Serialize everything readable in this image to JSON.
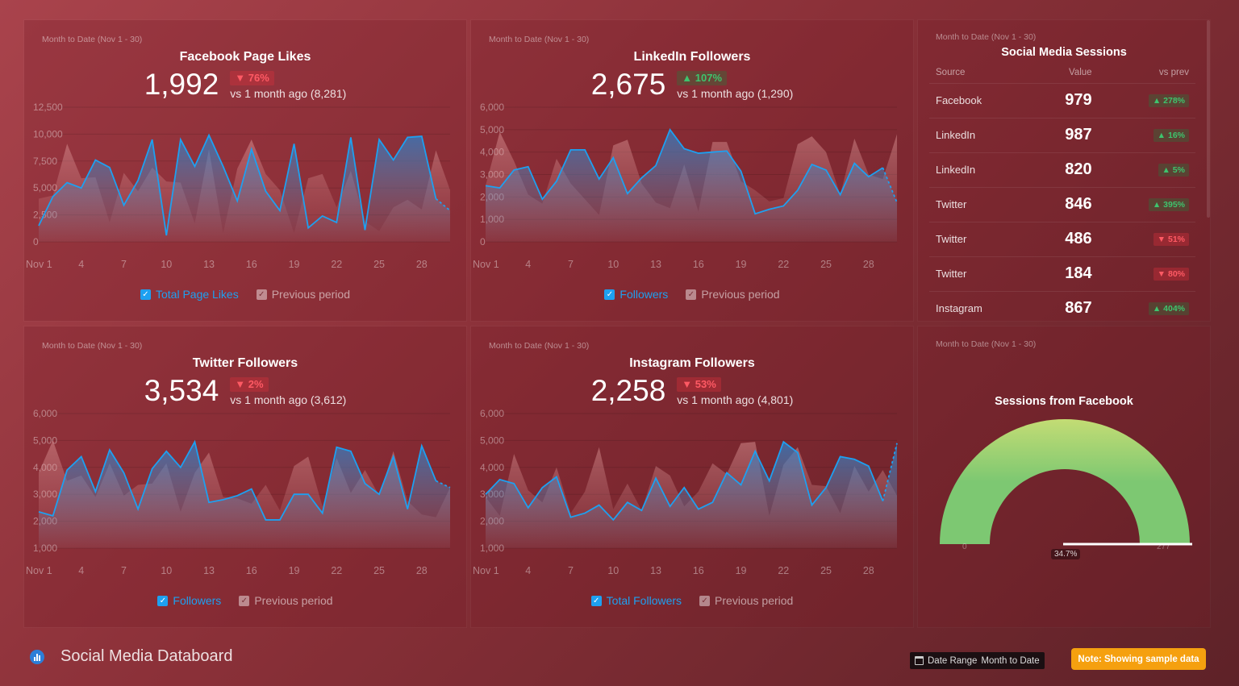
{
  "common": {
    "range": "Month to Date (Nov 1 - 30)",
    "prev_label": "Previous period"
  },
  "facebook": {
    "title": "Facebook Page Likes",
    "value": "1,992",
    "change": "▼ 76%",
    "change_dir": "down",
    "vs": "vs 1 month ago (8,281)",
    "legend": "Total Page Likes"
  },
  "linkedin": {
    "title": "LinkedIn Followers",
    "value": "2,675",
    "change": "▲ 107%",
    "change_dir": "up",
    "vs": "vs 1 month ago (1,290)",
    "legend": "Followers"
  },
  "twitter": {
    "title": "Twitter Followers",
    "value": "3,534",
    "change": "▼ 2%",
    "change_dir": "down",
    "vs": "vs 1 month ago (3,612)",
    "legend": "Followers"
  },
  "instagram": {
    "title": "Instagram Followers",
    "value": "2,258",
    "change": "▼ 53%",
    "change_dir": "down",
    "vs": "vs 1 month ago (4,801)",
    "legend": "Total Followers"
  },
  "sessions": {
    "title": "Social Media Sessions",
    "headers": [
      "Source",
      "Value",
      "vs prev"
    ],
    "rows": [
      {
        "source": "Facebook",
        "value": "979",
        "change": "▲ 278%",
        "dir": "up"
      },
      {
        "source": "LinkedIn",
        "value": "987",
        "change": "▲ 16%",
        "dir": "up"
      },
      {
        "source": "LinkedIn",
        "value": "820",
        "change": "▲ 5%",
        "dir": "up"
      },
      {
        "source": "Twitter",
        "value": "846",
        "change": "▲ 395%",
        "dir": "up"
      },
      {
        "source": "Twitter",
        "value": "486",
        "change": "▼ 51%",
        "dir": "down"
      },
      {
        "source": "Twitter",
        "value": "184",
        "change": "▼ 80%",
        "dir": "down"
      },
      {
        "source": "Instagram",
        "value": "867",
        "change": "▲ 404%",
        "dir": "up"
      }
    ]
  },
  "gauge": {
    "title": "Sessions from Facebook",
    "min": "0",
    "max": "277",
    "value_label": "34.7%",
    "colors": [
      "#c3dc74",
      "#7dc872"
    ]
  },
  "footer": {
    "title": "Social Media Databoard",
    "date_range_label": "Date Range",
    "date_range_value": "Month to Date",
    "note": "Note: Showing sample data"
  },
  "colors": {
    "current": "#1ea0f0",
    "up": "#3ec46d",
    "down": "#ff5a64",
    "note": "#f5a00f"
  },
  "chart_data": [
    {
      "type": "area",
      "id": "facebook",
      "x_ticks": [
        "Nov 1",
        "4",
        "7",
        "10",
        "13",
        "16",
        "19",
        "22",
        "25",
        "28"
      ],
      "ylim": [
        0,
        12500
      ],
      "y_ticks": [
        "0",
        "2,500",
        "5,000",
        "7,500",
        "10,000",
        "12,500"
      ],
      "grid": true,
      "legend": "bottom",
      "series": [
        {
          "name": "Total Page Likes",
          "values": [
            1500,
            4200,
            5500,
            5000,
            7600,
            6900,
            3400,
            5700,
            9500,
            600,
            9500,
            7000,
            9900,
            7000,
            3800,
            8600,
            4700,
            2900,
            9100,
            1300,
            2400,
            1800,
            9700,
            1100,
            9500,
            7600,
            9700,
            9800,
            4000,
            2900
          ]
        },
        {
          "name": "Previous period",
          "values": [
            4000,
            4300,
            9100,
            5900,
            6000,
            1800,
            6400,
            4700,
            6900,
            5600,
            5500,
            1700,
            8600,
            800,
            6800,
            9500,
            6300,
            4800,
            800,
            5900,
            6300,
            3200,
            6600,
            1900,
            1000,
            3200,
            3900,
            3000,
            8500,
            4800
          ]
        }
      ]
    },
    {
      "type": "area",
      "id": "linkedin",
      "x_ticks": [
        "Nov 1",
        "4",
        "7",
        "10",
        "13",
        "16",
        "19",
        "22",
        "25",
        "28"
      ],
      "ylim": [
        0,
        6000
      ],
      "y_ticks": [
        "0",
        "1,000",
        "2,000",
        "3,000",
        "4,000",
        "5,000",
        "6,000"
      ],
      "grid": true,
      "legend": "bottom",
      "series": [
        {
          "name": "Followers",
          "values": [
            2500,
            2400,
            3200,
            3350,
            1900,
            2700,
            4100,
            4100,
            2800,
            3750,
            2150,
            2850,
            3400,
            5000,
            4150,
            3950,
            4000,
            4050,
            3150,
            1250,
            1450,
            1600,
            2300,
            3450,
            3200,
            2100,
            3500,
            2900,
            3300,
            1750
          ]
        },
        {
          "name": "Previous period",
          "values": [
            2500,
            4900,
            3600,
            2100,
            1700,
            3700,
            2600,
            1900,
            1200,
            4300,
            4550,
            2600,
            1750,
            1500,
            3450,
            1350,
            4450,
            4450,
            2700,
            2300,
            1800,
            1950,
            4350,
            4700,
            4000,
            2100,
            4600,
            3000,
            2800,
            4800
          ]
        }
      ]
    },
    {
      "type": "area",
      "id": "twitter",
      "x_ticks": [
        "Nov 1",
        "4",
        "7",
        "10",
        "13",
        "16",
        "19",
        "22",
        "25",
        "28"
      ],
      "ylim": [
        1000,
        6000
      ],
      "y_ticks": [
        "1,000",
        "2,000",
        "3,000",
        "4,000",
        "5,000",
        "6,000"
      ],
      "grid": true,
      "legend": "bottom",
      "series": [
        {
          "name": "Followers",
          "values": [
            2350,
            2200,
            3900,
            4400,
            3100,
            4650,
            3800,
            2450,
            3950,
            4600,
            4000,
            4950,
            2700,
            2800,
            2950,
            3200,
            2050,
            2050,
            3000,
            3000,
            2300,
            4750,
            4600,
            3400,
            3000,
            4400,
            2450,
            4800,
            3500,
            3250
          ]
        },
        {
          "name": "Previous period",
          "values": [
            3800,
            5000,
            3500,
            3700,
            2900,
            4150,
            2950,
            3350,
            3400,
            4150,
            2350,
            3800,
            4550,
            2900,
            2850,
            2650,
            3350,
            2400,
            4050,
            4400,
            2550,
            4350,
            3050,
            3900,
            2950,
            4600,
            2750,
            2250,
            2150,
            3250
          ]
        }
      ]
    },
    {
      "type": "area",
      "id": "instagram",
      "x_ticks": [
        "Nov 1",
        "4",
        "7",
        "10",
        "13",
        "16",
        "19",
        "22",
        "25",
        "28"
      ],
      "ylim": [
        1000,
        6000
      ],
      "y_ticks": [
        "1,000",
        "2,000",
        "3,000",
        "4,000",
        "5,000",
        "6,000"
      ],
      "grid": true,
      "legend": "bottom",
      "series": [
        {
          "name": "Total Followers",
          "values": [
            3000,
            3550,
            3400,
            2500,
            3250,
            3650,
            2150,
            2300,
            2600,
            2050,
            2700,
            2400,
            3600,
            2550,
            3250,
            2450,
            2700,
            3800,
            3350,
            4600,
            3500,
            4950,
            4550,
            2600,
            3250,
            4400,
            4300,
            4050,
            2750,
            4900
          ]
        },
        {
          "name": "Previous period",
          "values": [
            2900,
            2200,
            4500,
            3150,
            2700,
            4000,
            2300,
            3100,
            4750,
            2450,
            3400,
            2400,
            4050,
            3700,
            2550,
            3100,
            4150,
            3750,
            4900,
            4950,
            2200,
            4100,
            4750,
            3350,
            3300,
            2300,
            4050,
            3100,
            3900,
            2950
          ]
        }
      ]
    },
    {
      "type": "gauge",
      "id": "gauge",
      "min": 0,
      "max": 277,
      "value_label": "34.7%"
    }
  ]
}
